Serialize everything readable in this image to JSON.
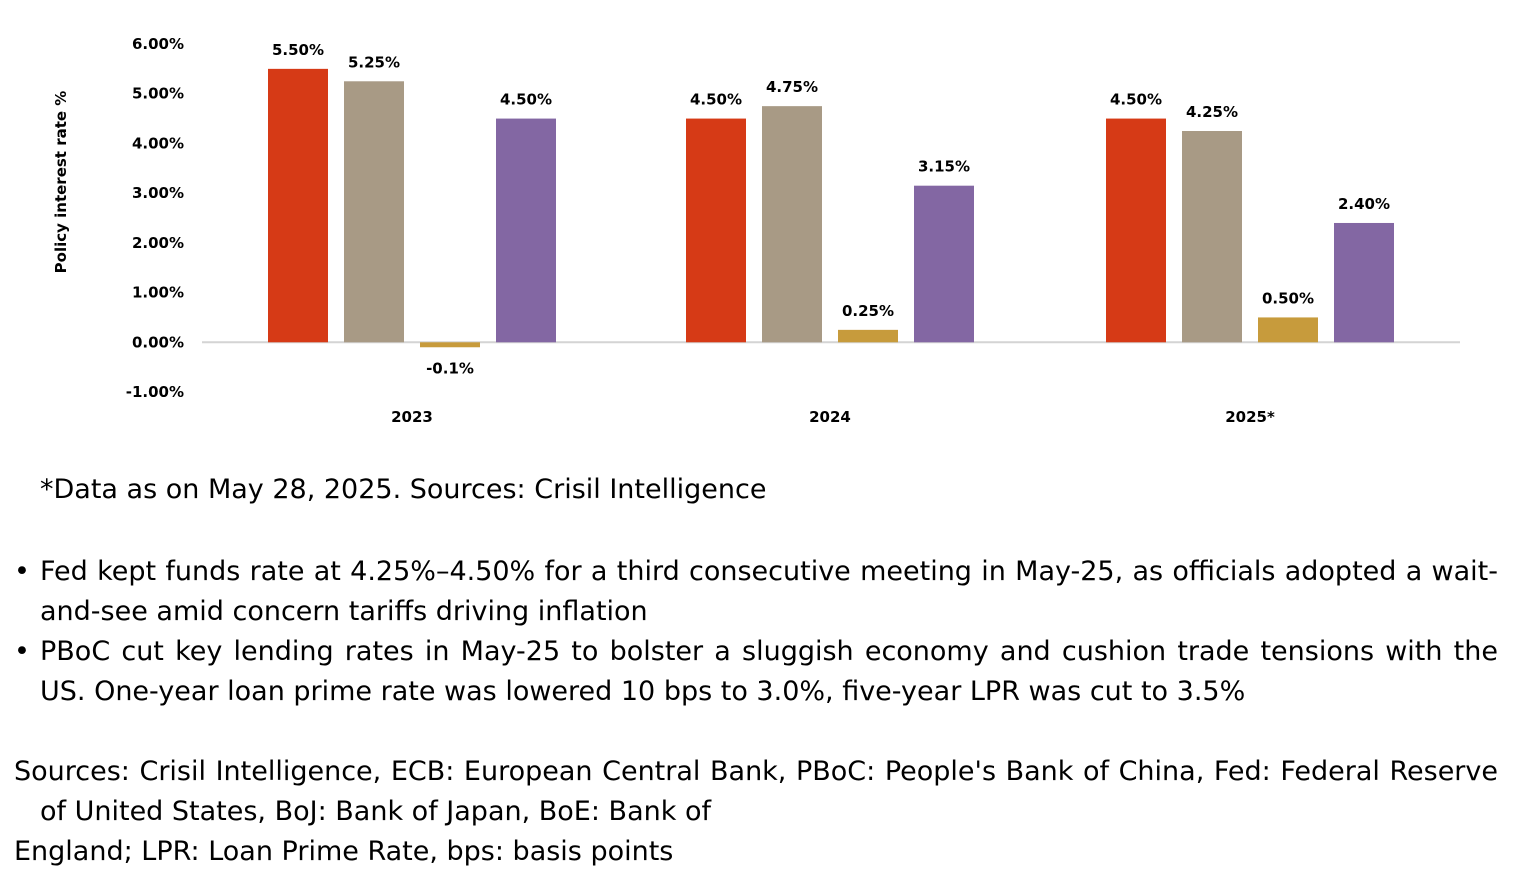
{
  "chart_data": {
    "type": "bar",
    "categories": [
      "2023",
      "2024",
      "2025*"
    ],
    "series": [
      {
        "color": "#d63a16",
        "values": [
          5.5,
          4.5,
          4.5
        ],
        "labels": [
          "5.50%",
          "4.50%",
          "4.50%"
        ]
      },
      {
        "color": "#a89a85",
        "values": [
          5.25,
          4.75,
          4.25
        ],
        "labels": [
          "5.25%",
          "4.75%",
          "4.25%"
        ]
      },
      {
        "color": "#c79b3c",
        "values": [
          -0.1,
          0.25,
          0.5
        ],
        "labels": [
          "-0.1%",
          "0.25%",
          "0.50%"
        ]
      },
      {
        "color": "#8367a3",
        "values": [
          4.5,
          3.15,
          2.4
        ],
        "labels": [
          "4.50%",
          "3.15%",
          "2.40%"
        ]
      }
    ],
    "ylabel": "Policy interest rate %",
    "ylim": [
      -1,
      6
    ],
    "yticks": [
      "-1.00%",
      "0.00%",
      "1.00%",
      "2.00%",
      "3.00%",
      "4.00%",
      "5.00%",
      "6.00%"
    ],
    "grid": false,
    "legend": "none"
  },
  "note": "*Data as on May 28, 2025. Sources: Crisil Intelligence",
  "bullets": [
    "Fed kept funds rate at 4.25%–4.50% for a third consecutive meeting in May-25, as officials adopted a wait-and-see amid concern tariffs driving inflation",
    "PBoC cut key lending rates in May-25 to bolster a sluggish economy and cushion trade tensions with the US. One-year loan prime rate was lowered 10 bps to 3.0%, five-year LPR was cut to 3.5%"
  ],
  "bullet_symbol": "•",
  "sources": {
    "line1": "Sources: Crisil Intelligence, ECB: European Central Bank, PBoC: People's Bank of China, Fed: Federal Reserve",
    "line2": "of United States, BoJ: Bank of Japan, BoE: Bank of",
    "line3": "England; LPR: Loan Prime Rate, bps: basis points"
  }
}
